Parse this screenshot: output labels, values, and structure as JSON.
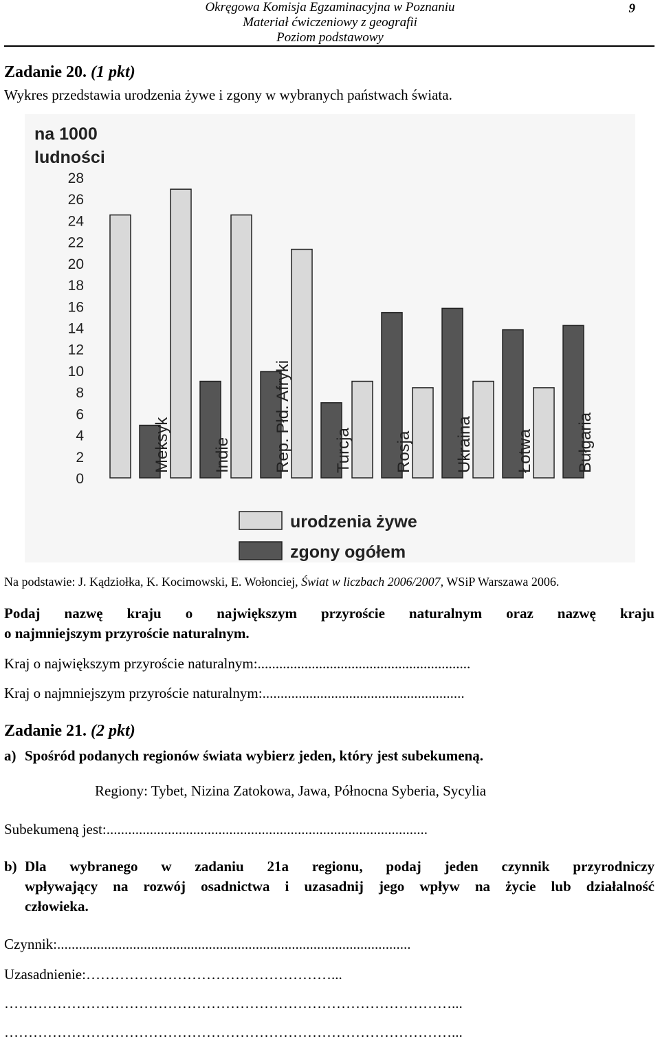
{
  "header": {
    "line1": "Okręgowa Komisja Egzaminacyjna w Poznaniu",
    "line2": "Materiał ćwiczeniowy z geografii",
    "line3": "Poziom podstawowy",
    "page_number": "9"
  },
  "task20": {
    "title": "Zadanie 20.",
    "points": "(1 pkt)",
    "intro": "Wykres przedstawia urodzenia żywe i zgony w wybranych państwach świata.",
    "source_prefix": "Na podstawie: J. Kądziołka, K. Kocimowski, E. Wołonciej, ",
    "source_title": "Świat w liczbach 2006/2007,",
    "source_suffix": " WSiP Warszawa 2006.",
    "question_line1": "Podaj nazwę kraju o największym przyroście naturalnym oraz nazwę kraju",
    "question_line2": "o najmniejszym przyroście naturalnym.",
    "answer1": "Kraj o największym przyroście naturalnym:",
    "answer1_dots": "...........................................................",
    "answer2": "Kraj o najmniejszym przyroście naturalnym:",
    "answer2_dots": "........................................................"
  },
  "chart_data": {
    "type": "bar",
    "ylabel": "na 1000 ludności",
    "ylim": [
      0,
      28
    ],
    "yticks": [
      "0",
      "2",
      "4",
      "6",
      "8",
      "10",
      "12",
      "14",
      "16",
      "18",
      "20",
      "22",
      "24",
      "26",
      "28"
    ],
    "categories": [
      "Meksyk",
      "Indie",
      "Rep. Płd. Afryki",
      "Turcja",
      "Rosja",
      "Ukraina",
      "Łotwa",
      "Bułgaria"
    ],
    "series": [
      {
        "name": "urodzenia żywe",
        "color": "#d9d9d9",
        "values": [
          24.5,
          26.9,
          24.5,
          21.3,
          9.0,
          8.4,
          9.0,
          8.4
        ]
      },
      {
        "name": "zgony ogółem",
        "color": "#555555",
        "values": [
          4.9,
          9.0,
          9.9,
          7.0,
          15.4,
          15.8,
          13.8,
          14.2
        ]
      }
    ],
    "legend_position": "bottom-right",
    "grid": false
  },
  "task21": {
    "title": "Zadanie 21.",
    "points": "(2 pkt)",
    "a_label": "a)",
    "a_text": "Spośród podanych regionów świata wybierz jeden, który jest subekumeną.",
    "regions": "Regiony: Tybet, Nizina Zatokowa, Jawa, Północna Syberia, Sycylia",
    "sub_label": "Subekumeną jest:",
    "sub_dots": ".........................................................................................",
    "b_label": "b)",
    "b_line1": "Dla wybranego w zadaniu 21a regionu, podaj jeden czynnik przyrodniczy",
    "b_line2": "wpływający na rozwój osadnictwa i uzasadnij jego wpływ na życie lub działalność",
    "b_line3": "człowieka.",
    "factor_label": "Czynnik:",
    "factor_dots": "..................................................................................................",
    "reason_label": "Uzasadnienie:",
    "reason_line1_tail": "……………………………………………...",
    "reason_line2": "…………………………………………………………………………………...",
    "reason_line3": "…………………………………………………………………………………..."
  }
}
